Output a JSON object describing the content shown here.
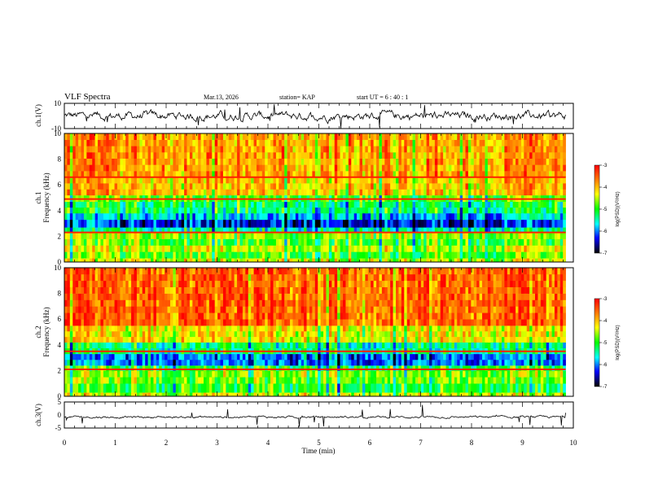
{
  "header": {
    "title": "VLF Spectra",
    "date": "Mar.13, 2026",
    "station": "station= KAP",
    "start": "start  UT  =   6  : 40 : 1"
  },
  "colorbar": {
    "label": "log(PSD)(V²/Hz)",
    "ticks": [
      "-3",
      "-4",
      "-5",
      "-6",
      "-7"
    ],
    "colors": [
      "#ff0000",
      "#ff7f00",
      "#ffff00",
      "#00ff00",
      "#00ffff",
      "#0000ff",
      "#000000"
    ]
  },
  "chart_data": [
    {
      "type": "line",
      "panel": "ch1-waveform",
      "ylabel": "ch.1(V)",
      "xlim": [
        0,
        10
      ],
      "ylim": [
        -10,
        10
      ],
      "yticks": [
        "10",
        "-10"
      ],
      "x_extent": 9.85,
      "series": [
        {
          "baseline": 0,
          "amplitude": 4
        }
      ]
    },
    {
      "type": "heatmap",
      "panel": "ch1-spectrogram",
      "ylabel": "ch.1\nFrequency (kHz)",
      "xlim": [
        0,
        10
      ],
      "ylim": [
        0,
        10
      ],
      "yticks": [
        "0",
        "2",
        "4",
        "6",
        "8",
        "10"
      ],
      "zlabel": "log(PSD)(V²/Hz)",
      "zlim": [
        -7,
        -3
      ],
      "bands": [
        {
          "from": 0.0,
          "to": 0.3,
          "level": 0.35
        },
        {
          "from": 0.3,
          "to": 0.8,
          "level": 0.45
        },
        {
          "from": 0.8,
          "to": 1.3,
          "level": 0.35
        },
        {
          "from": 1.3,
          "to": 1.8,
          "level": 0.45
        },
        {
          "from": 1.8,
          "to": 2.3,
          "level": 0.4
        },
        {
          "from": 2.3,
          "to": 2.7,
          "level": 0.6
        },
        {
          "from": 2.7,
          "to": 3.3,
          "level": 0.82
        },
        {
          "from": 3.3,
          "to": 3.8,
          "level": 0.68
        },
        {
          "from": 3.8,
          "to": 4.7,
          "level": 0.55
        },
        {
          "from": 4.7,
          "to": 5.2,
          "level": 0.45
        },
        {
          "from": 5.2,
          "to": 6.6,
          "level": 0.25
        },
        {
          "from": 6.6,
          "to": 10.0,
          "level": 0.2
        }
      ],
      "lines_khz": [
        6.6,
        2.3,
        4.9
      ]
    },
    {
      "type": "heatmap",
      "panel": "ch2-spectrogram",
      "ylabel": "ch.2\nFrequency (kHz)",
      "xlim": [
        0,
        10
      ],
      "ylim": [
        0,
        10
      ],
      "yticks": [
        "0",
        "2",
        "4",
        "6",
        "8",
        "10"
      ],
      "zlabel": "log(PSD)(V²/Hz)",
      "zlim": [
        -7,
        -3
      ],
      "bands": [
        {
          "from": 0.0,
          "to": 0.3,
          "level": 0.35
        },
        {
          "from": 0.3,
          "to": 1.0,
          "level": 0.5
        },
        {
          "from": 1.0,
          "to": 2.0,
          "level": 0.42
        },
        {
          "from": 2.0,
          "to": 2.4,
          "level": 0.5
        },
        {
          "from": 2.4,
          "to": 3.3,
          "level": 0.75
        },
        {
          "from": 3.3,
          "to": 4.2,
          "level": 0.58
        },
        {
          "from": 4.2,
          "to": 5.5,
          "level": 0.3
        },
        {
          "from": 5.5,
          "to": 10.0,
          "level": 0.12
        }
      ],
      "lines_khz": [
        3.5,
        2.1
      ]
    },
    {
      "type": "line",
      "panel": "ch3-waveform",
      "ylabel": "ch.3(V)",
      "xlabel": "Time (min)",
      "xlim": [
        0,
        10
      ],
      "ylim": [
        -5,
        5
      ],
      "yticks": [
        "5",
        "0",
        "-5"
      ],
      "xticks": [
        "0",
        "1",
        "2",
        "3",
        "4",
        "5",
        "6",
        "7",
        "8",
        "9",
        "10"
      ],
      "x_extent": 9.85,
      "series": [
        {
          "baseline": -0.8,
          "amplitude": 0.5
        }
      ]
    }
  ]
}
